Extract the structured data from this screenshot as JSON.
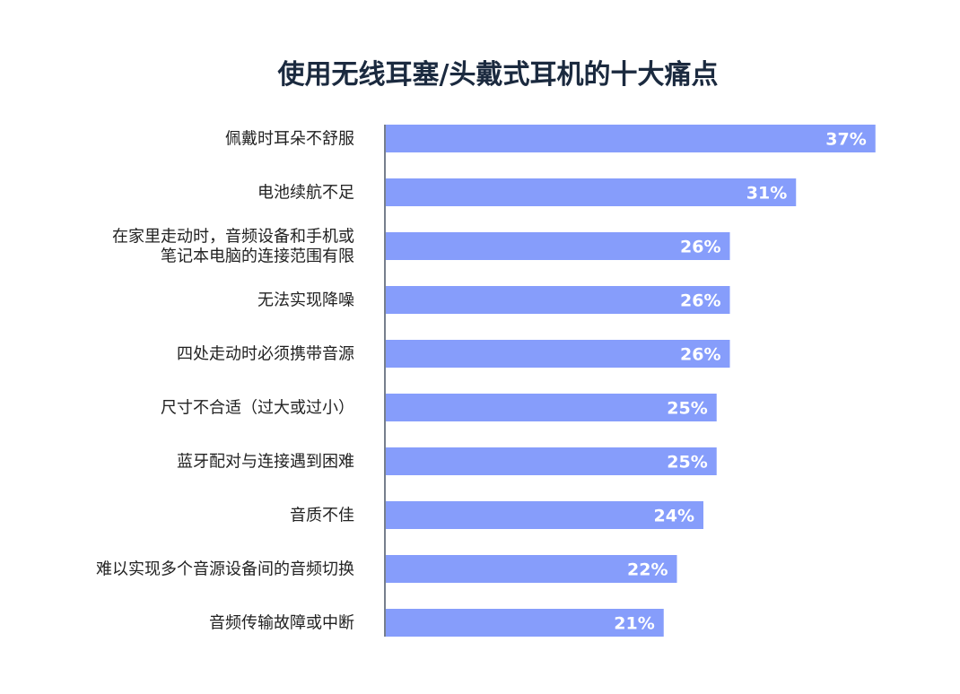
{
  "chart_data": {
    "type": "bar",
    "orientation": "horizontal",
    "title": "使用无线耳塞/头戴式耳机的十大痛点",
    "categories": [
      [
        "佩戴时耳朵不舒服"
      ],
      [
        "电池续航不足"
      ],
      [
        "在家里走动时，音频设备和手机或",
        "笔记本电脑的连接范围有限"
      ],
      [
        "无法实现降噪"
      ],
      [
        "四处走动时必须携带音源"
      ],
      [
        "尺寸不合适（过大或过小）"
      ],
      [
        "蓝牙配对与连接遇到困难"
      ],
      [
        "音质不佳"
      ],
      [
        "难以实现多个音源设备间的音频切换"
      ],
      [
        "音频传输故障或中断"
      ]
    ],
    "values": [
      37,
      31,
      26,
      26,
      26,
      25,
      25,
      24,
      22,
      21
    ],
    "value_labels": [
      "37%",
      "31%",
      "26%",
      "26%",
      "26%",
      "25%",
      "25%",
      "24%",
      "22%",
      "21%"
    ],
    "unit": "%",
    "bar_color": "#869dfb",
    "axis_color": "#1b2a3f",
    "grid": false
  }
}
